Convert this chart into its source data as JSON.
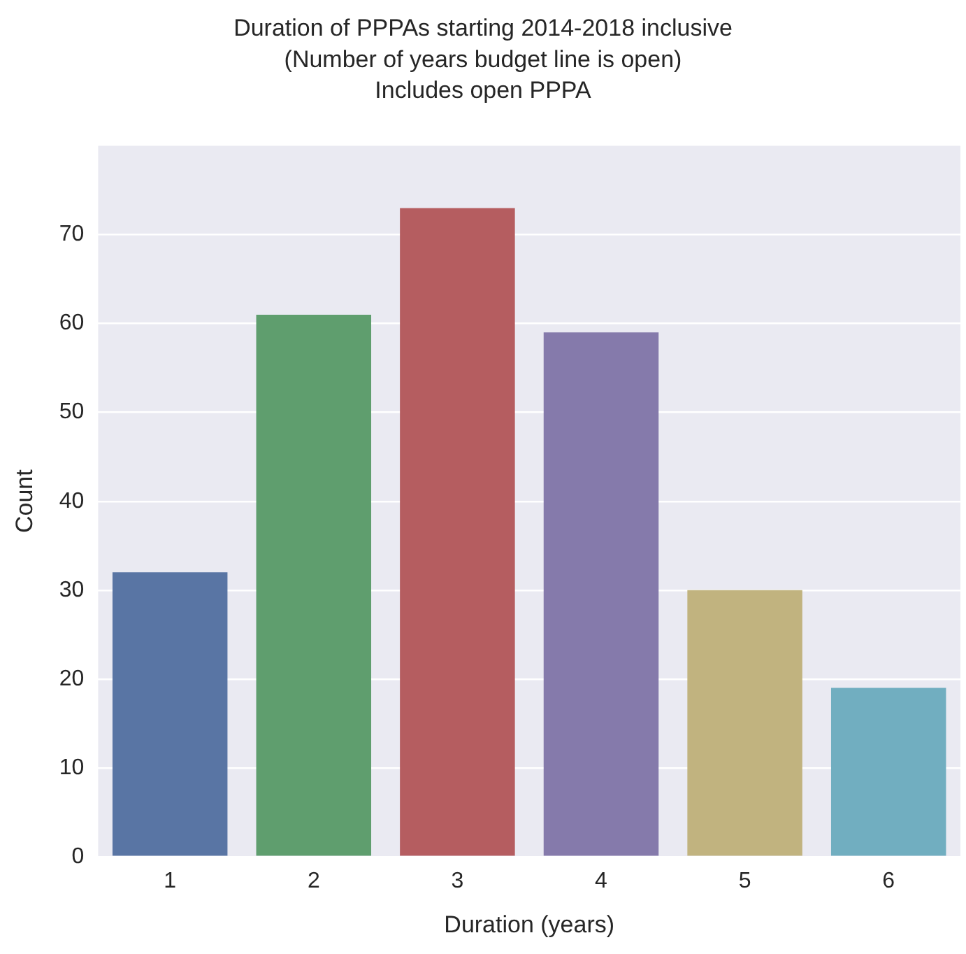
{
  "chart_data": {
    "type": "bar",
    "title": "Duration of PPPAs starting 2014-2018 inclusive\n(Number of years budget line is open)\nIncludes open PPPA",
    "xlabel": "Duration (years)",
    "ylabel": "Count",
    "categories": [
      "1",
      "2",
      "3",
      "4",
      "5",
      "6"
    ],
    "values": [
      32,
      61,
      73,
      59,
      30,
      19
    ],
    "colors": [
      "#5975a4",
      "#5f9e6e",
      "#b55d60",
      "#857aab",
      "#c1b37f",
      "#71aec0"
    ],
    "ylim": [
      0,
      80
    ],
    "yticks": [
      0,
      10,
      20,
      30,
      40,
      50,
      60,
      70
    ],
    "grid": "y"
  }
}
